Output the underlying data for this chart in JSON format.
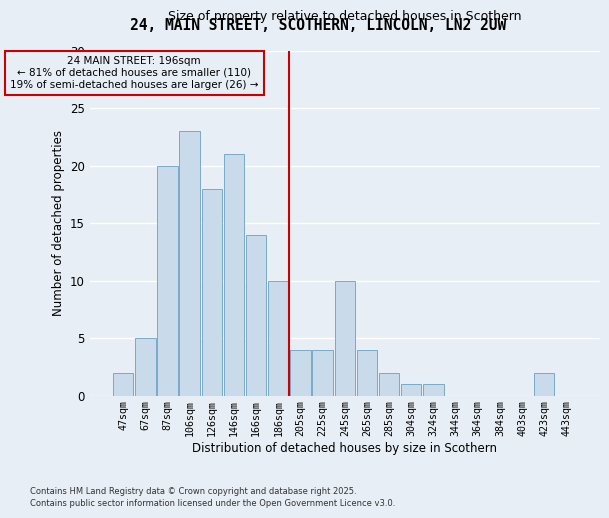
{
  "title": "24, MAIN STREET, SCOTHERN, LINCOLN, LN2 2UW",
  "subtitle": "Size of property relative to detached houses in Scothern",
  "xlabel": "Distribution of detached houses by size in Scothern",
  "ylabel": "Number of detached properties",
  "footnote1": "Contains HM Land Registry data © Crown copyright and database right 2025.",
  "footnote2": "Contains public sector information licensed under the Open Government Licence v3.0.",
  "bar_labels": [
    "47sqm",
    "67sqm",
    "87sqm",
    "106sqm",
    "126sqm",
    "146sqm",
    "166sqm",
    "186sqm",
    "205sqm",
    "225sqm",
    "245sqm",
    "265sqm",
    "285sqm",
    "304sqm",
    "324sqm",
    "344sqm",
    "364sqm",
    "384sqm",
    "403sqm",
    "423sqm",
    "443sqm"
  ],
  "bar_values": [
    2,
    5,
    20,
    23,
    18,
    21,
    14,
    10,
    4,
    4,
    10,
    4,
    2,
    1,
    1,
    0,
    0,
    0,
    0,
    2,
    0
  ],
  "bar_color": "#c9daea",
  "bar_edge_color": "#7aaac8",
  "ylim": [
    0,
    30
  ],
  "yticks": [
    0,
    5,
    10,
    15,
    20,
    25,
    30
  ],
  "vline_color": "#cc0000",
  "annotation_line1": "24 MAIN STREET: 196sqm",
  "annotation_line2": "← 81% of detached houses are smaller (110)",
  "annotation_line3": "19% of semi-detached houses are larger (26) →",
  "annotation_box_color": "#cc0000",
  "background_color": "#e8eef5",
  "grid_color": "#ffffff",
  "title_fontsize": 10.5,
  "subtitle_fontsize": 9
}
